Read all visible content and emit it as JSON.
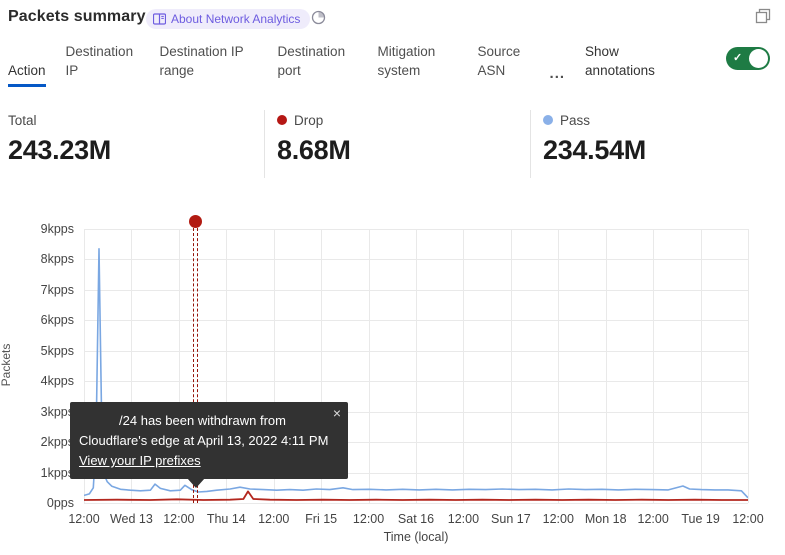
{
  "header": {
    "title": "Packets summary",
    "badge_label": "About Network Analytics"
  },
  "tabs": {
    "items": [
      {
        "label": "Action",
        "active": true
      },
      {
        "label": "Destination IP",
        "active": false
      },
      {
        "label": "Destination IP range",
        "active": false
      },
      {
        "label": "Destination port",
        "active": false
      },
      {
        "label": "Mitigation system",
        "active": false
      },
      {
        "label": "Source ASN",
        "active": false
      }
    ],
    "more_label": "...",
    "annotations_label": "Show annotations",
    "annotations_toggle_on": true
  },
  "stats": [
    {
      "label": "Total",
      "value": "243.23M",
      "dot_color": null
    },
    {
      "label": "Drop",
      "value": "8.68M",
      "dot_color": "#b51714"
    },
    {
      "label": "Pass",
      "value": "234.54M",
      "dot_color": "#8ab0e8"
    }
  ],
  "chart_data": {
    "type": "line",
    "title": "",
    "xlabel": "Time (local)",
    "ylabel": "Packets",
    "unit": "kpps",
    "ylim": [
      0,
      9
    ],
    "grid": true,
    "y_ticks": [
      "9kpps",
      "8kpps",
      "7kpps",
      "6kpps",
      "5kpps",
      "4kpps",
      "3kpps",
      "2kpps",
      "1kpps",
      "0pps"
    ],
    "x_ticks": [
      "12:00",
      "Wed 13",
      "12:00",
      "Thu 14",
      "12:00",
      "Fri 15",
      "12:00",
      "Sat 16",
      "12:00",
      "Sun 17",
      "12:00",
      "Mon 18",
      "12:00",
      "Tue 19",
      "12:00"
    ],
    "series": [
      {
        "name": "Pass",
        "color": "#7aa7e2",
        "points": [
          [
            0,
            0.25
          ],
          [
            0.008,
            0.3
          ],
          [
            0.014,
            0.5
          ],
          [
            0.018,
            2.0
          ],
          [
            0.0226,
            8.35
          ],
          [
            0.027,
            2.2
          ],
          [
            0.03,
            0.95
          ],
          [
            0.035,
            0.7
          ],
          [
            0.042,
            0.55
          ],
          [
            0.055,
            0.45
          ],
          [
            0.07,
            0.42
          ],
          [
            0.085,
            0.4
          ],
          [
            0.1,
            0.42
          ],
          [
            0.107,
            0.62
          ],
          [
            0.115,
            0.48
          ],
          [
            0.13,
            0.4
          ],
          [
            0.145,
            0.42
          ],
          [
            0.152,
            0.58
          ],
          [
            0.162,
            0.44
          ],
          [
            0.172,
            0.36
          ],
          [
            0.185,
            0.38
          ],
          [
            0.2,
            0.42
          ],
          [
            0.22,
            0.46
          ],
          [
            0.235,
            0.52
          ],
          [
            0.25,
            0.46
          ],
          [
            0.27,
            0.44
          ],
          [
            0.29,
            0.42
          ],
          [
            0.31,
            0.44
          ],
          [
            0.33,
            0.42
          ],
          [
            0.35,
            0.46
          ],
          [
            0.37,
            0.44
          ],
          [
            0.39,
            0.5
          ],
          [
            0.405,
            0.44
          ],
          [
            0.43,
            0.45
          ],
          [
            0.455,
            0.43
          ],
          [
            0.48,
            0.45
          ],
          [
            0.505,
            0.43
          ],
          [
            0.53,
            0.45
          ],
          [
            0.555,
            0.43
          ],
          [
            0.58,
            0.45
          ],
          [
            0.605,
            0.44
          ],
          [
            0.63,
            0.46
          ],
          [
            0.655,
            0.44
          ],
          [
            0.68,
            0.45
          ],
          [
            0.705,
            0.43
          ],
          [
            0.73,
            0.46
          ],
          [
            0.755,
            0.44
          ],
          [
            0.78,
            0.45
          ],
          [
            0.805,
            0.43
          ],
          [
            0.83,
            0.45
          ],
          [
            0.855,
            0.44
          ],
          [
            0.88,
            0.43
          ],
          [
            0.902,
            0.56
          ],
          [
            0.912,
            0.46
          ],
          [
            0.93,
            0.44
          ],
          [
            0.95,
            0.43
          ],
          [
            0.97,
            0.43
          ],
          [
            0.99,
            0.4
          ],
          [
            1,
            0.17
          ]
        ]
      },
      {
        "name": "Drop",
        "color": "#b3271e",
        "points": [
          [
            0,
            0.1
          ],
          [
            0.05,
            0.11
          ],
          [
            0.1,
            0.1
          ],
          [
            0.14,
            0.12
          ],
          [
            0.18,
            0.1
          ],
          [
            0.22,
            0.11
          ],
          [
            0.24,
            0.13
          ],
          [
            0.247,
            0.38
          ],
          [
            0.255,
            0.13
          ],
          [
            0.28,
            0.11
          ],
          [
            0.32,
            0.1
          ],
          [
            0.36,
            0.11
          ],
          [
            0.4,
            0.1
          ],
          [
            0.44,
            0.11
          ],
          [
            0.48,
            0.1
          ],
          [
            0.52,
            0.11
          ],
          [
            0.56,
            0.1
          ],
          [
            0.6,
            0.11
          ],
          [
            0.64,
            0.1
          ],
          [
            0.68,
            0.11
          ],
          [
            0.72,
            0.1
          ],
          [
            0.76,
            0.11
          ],
          [
            0.8,
            0.1
          ],
          [
            0.84,
            0.11
          ],
          [
            0.88,
            0.1
          ],
          [
            0.92,
            0.11
          ],
          [
            0.96,
            0.1
          ],
          [
            1,
            0.1
          ]
        ]
      }
    ],
    "annotation": {
      "x_frac": 0.1679,
      "line_color": "#96150a",
      "dot_color": "#b21b12",
      "label": "/24 has been withdrawn from Cloudflare's edge at April 13, 2022 4:11 PM"
    }
  },
  "tooltip": {
    "line1": "/24 has been withdrawn from",
    "line2": "Cloudflare's edge at April 13, 2022 4:11 PM",
    "link": "View your IP prefixes",
    "close": "×"
  },
  "colors": {
    "accent_tab": "#0558c6",
    "toggle_on": "#1e7b44",
    "badge_bg": "#efecfb",
    "badge_text": "#6d5ce0",
    "pass_line": "#7aa7e2",
    "drop_line": "#b3271e",
    "drop_stat_dot": "#b51714",
    "pass_stat_dot": "#8ab0e8",
    "annotation_red": "#b21b12",
    "tooltip_bg": "#323232"
  }
}
